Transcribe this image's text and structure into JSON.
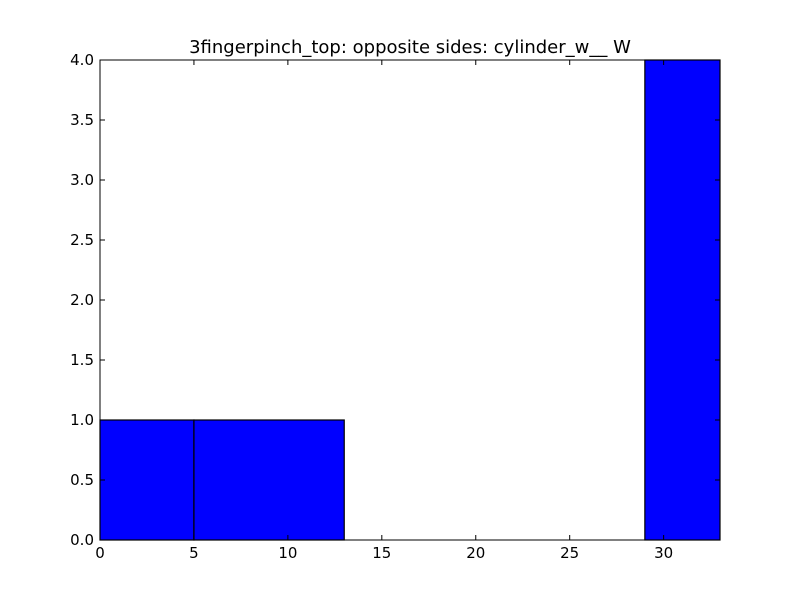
{
  "chart_data": {
    "type": "bar",
    "title": "3fingerpinch_top: opposite sides: cylinder_w__ W",
    "xlabel": "",
    "ylabel": "",
    "xlim": [
      0,
      33
    ],
    "ylim": [
      0,
      4.0
    ],
    "xticks": [
      0,
      5,
      10,
      15,
      20,
      25,
      30
    ],
    "xtick_labels": [
      "0",
      "5",
      "10",
      "15",
      "20",
      "25",
      "30"
    ],
    "yticks": [
      0,
      0.5,
      1.0,
      1.5,
      2.0,
      2.5,
      3.0,
      3.5,
      4.0
    ],
    "ytick_labels": [
      "0.0",
      "0.5",
      "1.0",
      "1.5",
      "2.0",
      "2.5",
      "3.0",
      "3.5",
      "4.0"
    ],
    "bins": [
      {
        "x0": 0,
        "x1": 5,
        "value": 1
      },
      {
        "x0": 5,
        "x1": 13,
        "value": 1
      },
      {
        "x0": 13,
        "x1": 21,
        "value": 0
      },
      {
        "x0": 21,
        "x1": 29,
        "value": 0
      },
      {
        "x0": 29,
        "x1": 33,
        "value": 4
      }
    ],
    "bar_color": "#0000ff",
    "grid": false
  }
}
